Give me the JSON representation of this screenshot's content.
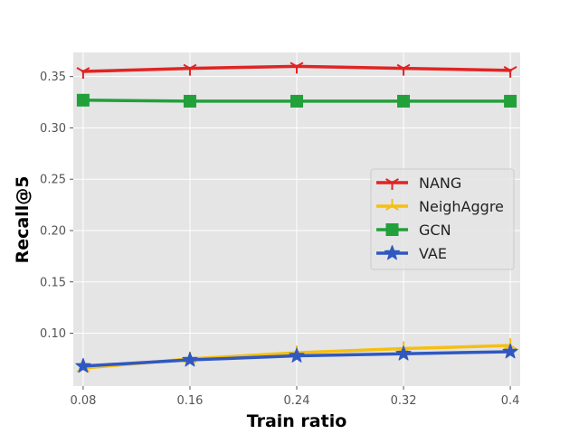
{
  "chart_data": {
    "type": "line",
    "title": "",
    "xlabel": "Train ratio",
    "ylabel": "Recall@5",
    "x": [
      0.08,
      0.16,
      0.24,
      0.32,
      0.4
    ],
    "x_tick_labels": [
      "0.08",
      "0.16",
      "0.24",
      "0.32",
      "0.4"
    ],
    "y_ticks": [
      0.1,
      0.15,
      0.2,
      0.25,
      0.3,
      0.35
    ],
    "y_tick_labels": [
      "0.10",
      "0.15",
      "0.20",
      "0.25",
      "0.30",
      "0.35"
    ],
    "xlim": [
      0.0726,
      0.4074
    ],
    "ylim": [
      0.0485,
      0.3735
    ],
    "grid": true,
    "legend_position": "center-right",
    "series": [
      {
        "name": "NANG",
        "color": "#e02424",
        "marker": "tri-down",
        "values": [
          0.355,
          0.358,
          0.36,
          0.358,
          0.356
        ]
      },
      {
        "name": "NeighAggre",
        "color": "#f5bf12",
        "marker": "tri-up",
        "values": [
          0.066,
          0.075,
          0.081,
          0.085,
          0.088
        ]
      },
      {
        "name": "GCN",
        "color": "#22a03a",
        "marker": "square",
        "values": [
          0.327,
          0.326,
          0.326,
          0.326,
          0.326
        ]
      },
      {
        "name": "VAE",
        "color": "#3058c0",
        "marker": "star",
        "values": [
          0.068,
          0.074,
          0.078,
          0.08,
          0.082
        ]
      }
    ]
  }
}
